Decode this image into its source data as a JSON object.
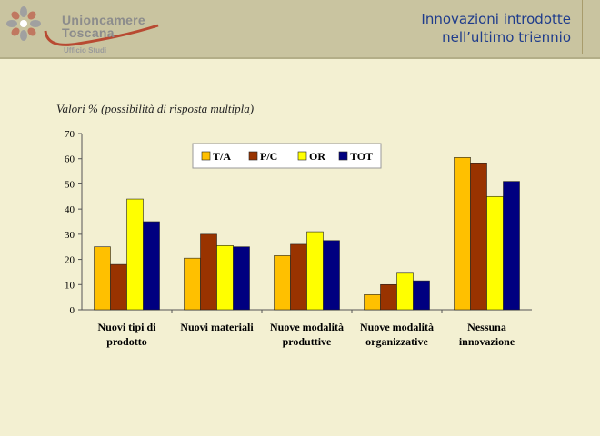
{
  "header": {
    "logo_name_line1": "Unioncamere",
    "logo_name_line2": "Toscana",
    "logo_subtitle": "Ufficio Studi",
    "title_line1": "Innovazioni introdotte",
    "title_line2": "nell’ultimo triennio"
  },
  "chart_data": {
    "type": "bar",
    "note": "Valori % (possibilità di risposta multipla)",
    "categories": [
      [
        "Nuovi tipi di",
        "prodotto"
      ],
      [
        "Nuovi materiali"
      ],
      [
        "Nuove modalità",
        "produttive"
      ],
      [
        "Nuove modalità",
        "organizzative"
      ],
      [
        "Nessuna",
        "innovazione"
      ]
    ],
    "series": [
      {
        "name": "T/A",
        "color": "#ffc000",
        "values": [
          25,
          20.5,
          21.5,
          6,
          60.5
        ]
      },
      {
        "name": "P/C",
        "color": "#993300",
        "values": [
          18,
          30,
          26,
          10,
          58
        ]
      },
      {
        "name": "OR",
        "color": "#ffff00",
        "values": [
          44,
          25.5,
          31,
          14.5,
          45
        ]
      },
      {
        "name": "TOT",
        "color": "#000080",
        "values": [
          35,
          25,
          27.5,
          11.5,
          51
        ]
      }
    ],
    "yticks": [
      0,
      10,
      20,
      30,
      40,
      50,
      60,
      70
    ],
    "ylim": [
      0,
      70
    ],
    "grid": false,
    "legend_position": "top"
  }
}
